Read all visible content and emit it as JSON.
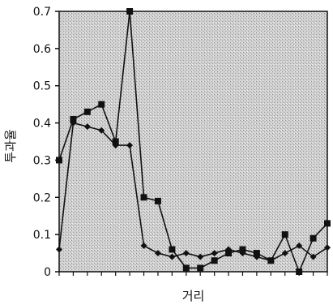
{
  "chart_data": {
    "type": "line",
    "title": "",
    "xlabel": "거리",
    "ylabel": "투과율",
    "x": [
      0,
      1,
      2,
      3,
      4,
      5,
      6,
      7,
      8,
      9,
      10,
      11,
      12,
      13,
      14,
      15,
      16,
      17,
      18,
      19
    ],
    "xlim": [
      0,
      19
    ],
    "ylim": [
      0,
      0.7
    ],
    "yticks": [
      "0",
      "0.1",
      "0.2",
      "0.3",
      "0.4",
      "0.5",
      "0.6",
      "0.7"
    ],
    "grid": false,
    "background": "stippled-gray",
    "series": [
      {
        "marker": "square",
        "color": "#111111",
        "values": [
          0.3,
          0.41,
          0.43,
          0.45,
          0.35,
          0.7,
          0.2,
          0.19,
          0.06,
          0.01,
          0.01,
          0.03,
          0.05,
          0.06,
          0.05,
          0.03,
          0.1,
          0.0,
          0.09,
          0.13
        ]
      },
      {
        "marker": "diamond",
        "color": "#111111",
        "values": [
          0.06,
          0.4,
          0.39,
          0.38,
          0.34,
          0.34,
          0.07,
          0.05,
          0.04,
          0.05,
          0.04,
          0.05,
          0.06,
          0.05,
          0.04,
          0.03,
          0.05,
          0.07,
          0.04,
          0.065
        ]
      }
    ]
  }
}
